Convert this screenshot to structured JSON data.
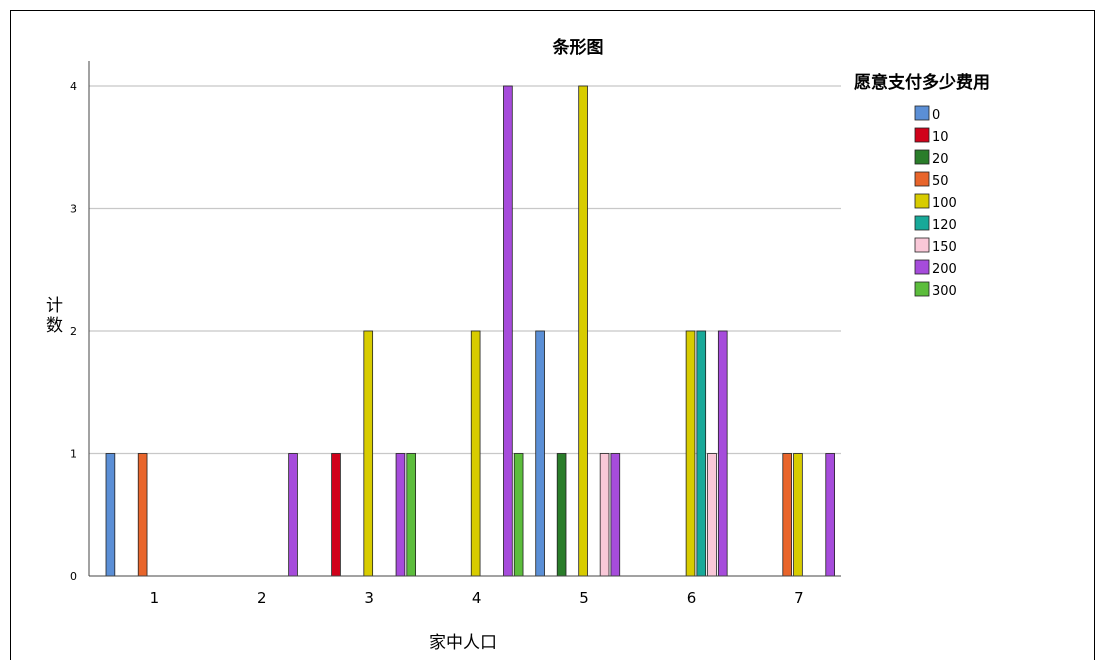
{
  "chart_data": {
    "type": "bar",
    "title": "条形图",
    "xlabel": "家中人口",
    "ylabel": "计数",
    "ylim": [
      0,
      4
    ],
    "yticks": [
      "0",
      "1",
      "2",
      "3",
      "4"
    ],
    "grid": true,
    "legend_title": "愿意支付多少费用",
    "legend_position": "right",
    "categories": [
      "1",
      "2",
      "3",
      "4",
      "5",
      "6",
      "7"
    ],
    "series": [
      {
        "name": "0",
        "color": "#5b8fd6",
        "values": [
          1,
          0,
          0,
          0,
          2,
          0,
          0
        ]
      },
      {
        "name": "10",
        "color": "#d0021b",
        "values": [
          0,
          0,
          1,
          0,
          0,
          0,
          0
        ]
      },
      {
        "name": "20",
        "color": "#2a7d2a",
        "values": [
          0,
          0,
          0,
          0,
          1,
          0,
          0
        ]
      },
      {
        "name": "50",
        "color": "#e8652b",
        "values": [
          1,
          0,
          0,
          0,
          0,
          0,
          1
        ]
      },
      {
        "name": "100",
        "color": "#d8cc00",
        "values": [
          0,
          0,
          2,
          2,
          4,
          2,
          1
        ]
      },
      {
        "name": "120",
        "color": "#18a999",
        "values": [
          0,
          0,
          0,
          0,
          0,
          2,
          0
        ]
      },
      {
        "name": "150",
        "color": "#f9c8d8",
        "values": [
          0,
          0,
          0,
          0,
          1,
          1,
          0
        ]
      },
      {
        "name": "200",
        "color": "#a64cdb",
        "values": [
          0,
          1,
          1,
          4,
          1,
          2,
          1
        ]
      },
      {
        "name": "300",
        "color": "#5cbd3c",
        "values": [
          0,
          0,
          1,
          1,
          0,
          0,
          0
        ]
      }
    ]
  }
}
